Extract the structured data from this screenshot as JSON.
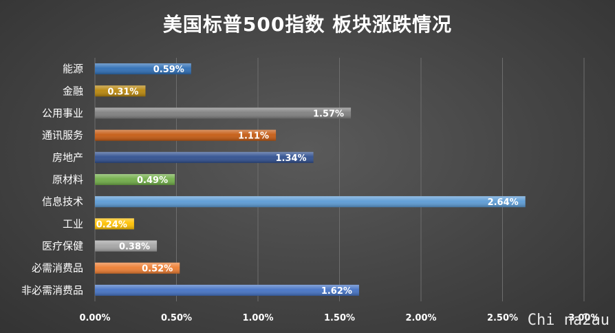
{
  "title": "美国标普500指数 板块涨跌情况",
  "watermark": "Chi na2au",
  "chart_data": {
    "type": "bar",
    "orientation": "horizontal",
    "title": "美国标普500指数 板块涨跌情况",
    "categories": [
      "能源",
      "金融",
      "公用事业",
      "通讯服务",
      "房地产",
      "原材料",
      "信息技术",
      "工业",
      "医疗保健",
      "必需消费品",
      "非必需消费品"
    ],
    "values": [
      0.59,
      0.31,
      1.57,
      1.11,
      1.34,
      0.49,
      2.64,
      0.24,
      0.38,
      0.52,
      1.62
    ],
    "value_labels": [
      "0.59%",
      "0.31%",
      "1.57%",
      "1.11%",
      "1.34%",
      "0.49%",
      "2.64%",
      "0.24%",
      "0.38%",
      "0.52%",
      "1.62%"
    ],
    "colors": [
      "#2e6eb5",
      "#b8860b",
      "#7f7f7f",
      "#c55a11",
      "#2f4f8f",
      "#70ad47",
      "#5b9bd5",
      "#ffc000",
      "#a5a5a5",
      "#ed7d31",
      "#4472c4"
    ],
    "xlim": [
      0,
      3.0
    ],
    "xticks": [
      0,
      0.5,
      1.0,
      1.5,
      2.0,
      2.5,
      3.0
    ],
    "xtick_labels": [
      "0.00%",
      "0.50%",
      "1.00%",
      "1.50%",
      "2.00%",
      "2.50%",
      "3.00%"
    ],
    "grid": true,
    "legend": "none"
  }
}
